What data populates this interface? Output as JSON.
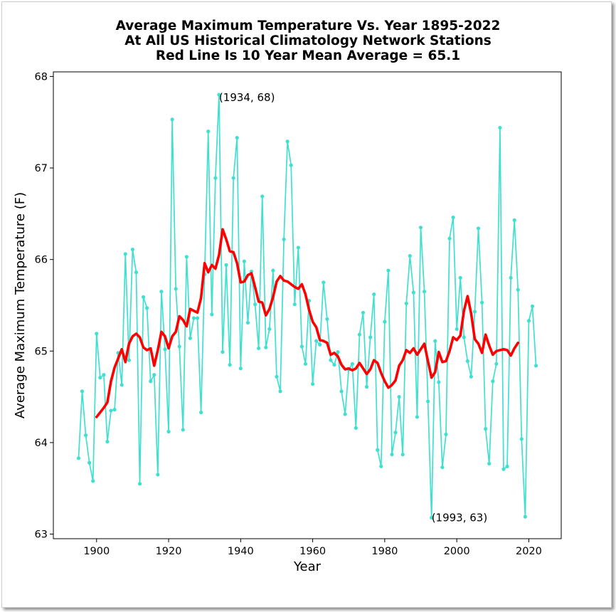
{
  "chart_data": {
    "type": "line",
    "title_lines": [
      "Average Maximum Temperature Vs. Year 1895-2022",
      "At All US Historical Climatology Network Stations",
      "Red Line Is 10 Year Mean  Average = 65.1"
    ],
    "xlabel": "Year",
    "ylabel": "Average Maximum Temperature (F)",
    "xlim": [
      1888,
      2029
    ],
    "ylim": [
      62.95,
      68.05
    ],
    "xticks": [
      1900,
      1920,
      1940,
      1960,
      1980,
      2000,
      2020
    ],
    "yticks": [
      63,
      64,
      65,
      66,
      67,
      68
    ],
    "grid": false,
    "series": [
      {
        "color": "#40E0D0",
        "marker": "circle",
        "x_start": 1895,
        "values": [
          63.83,
          64.56,
          64.08,
          63.78,
          63.58,
          65.19,
          64.71,
          64.74,
          64.01,
          64.35,
          64.36,
          64.98,
          64.63,
          66.06,
          64.9,
          66.11,
          65.86,
          63.55,
          65.59,
          65.47,
          64.67,
          64.74,
          63.65,
          65.65,
          65.02,
          64.12,
          67.53,
          65.68,
          65.05,
          64.14,
          66.03,
          65.14,
          65.36,
          65.36,
          64.33,
          65.84,
          67.4,
          65.4,
          66.89,
          67.8,
          64.99,
          65.94,
          64.85,
          66.89,
          67.33,
          64.81,
          65.98,
          65.31,
          65.87,
          65.51,
          65.03,
          66.69,
          65.04,
          65.24,
          65.88,
          64.72,
          64.56,
          66.22,
          67.29,
          67.03,
          65.51,
          66.13,
          65.05,
          64.86,
          65.55,
          64.64,
          65.11,
          65.07,
          65.75,
          65.35,
          64.9,
          64.85,
          64.99,
          64.56,
          64.31,
          64.8,
          64.86,
          64.16,
          65.18,
          65.42,
          64.61,
          65.15,
          65.62,
          63.92,
          63.74,
          65.32,
          65.88,
          63.87,
          64.11,
          64.5,
          63.87,
          65.52,
          66.04,
          65.64,
          64.28,
          66.35,
          65.65,
          64.45,
          63.18,
          65.11,
          64.66,
          63.73,
          64.09,
          66.23,
          66.46,
          65.24,
          65.8,
          65.15,
          64.89,
          64.72,
          65.43,
          66.34,
          65.53,
          64.15,
          63.77,
          64.67,
          64.86,
          67.44,
          63.71,
          63.74,
          65.8,
          66.43,
          65.67,
          64.04,
          63.19,
          65.33,
          65.49,
          64.84
        ]
      },
      {
        "color": "#FF0000",
        "marker": "none",
        "x_start": 1900,
        "values": [
          64.28,
          64.33,
          64.38,
          64.44,
          64.67,
          64.82,
          64.92,
          65.02,
          64.88,
          65.08,
          65.16,
          65.19,
          65.15,
          65.04,
          65.01,
          65.03,
          64.84,
          65.01,
          65.21,
          65.16,
          65.03,
          65.16,
          65.21,
          65.38,
          65.34,
          65.27,
          65.46,
          65.44,
          65.42,
          65.58,
          65.96,
          65.86,
          65.94,
          65.9,
          66.05,
          66.33,
          66.22,
          66.09,
          66.08,
          65.96,
          65.75,
          65.76,
          65.83,
          65.85,
          65.7,
          65.54,
          65.53,
          65.39,
          65.46,
          65.59,
          65.76,
          65.82,
          65.77,
          65.76,
          65.73,
          65.7,
          65.68,
          65.73,
          65.62,
          65.45,
          65.32,
          65.26,
          65.12,
          65.11,
          65.09,
          64.96,
          64.98,
          64.94,
          64.85,
          64.8,
          64.81,
          64.79,
          64.81,
          64.87,
          64.81,
          64.75,
          64.8,
          64.9,
          64.87,
          64.76,
          64.67,
          64.6,
          64.63,
          64.68,
          64.84,
          64.9,
          65.01,
          64.98,
          65.03,
          64.96,
          65.02,
          65.08,
          64.89,
          64.71,
          64.77,
          64.99,
          64.88,
          64.89,
          65.0,
          65.15,
          65.12,
          65.17,
          65.44,
          65.6,
          65.41,
          65.13,
          65.08,
          64.98,
          65.18,
          65.06,
          64.96,
          65.0,
          65.01,
          65.02,
          65.01,
          64.95,
          65.03,
          65.09
        ]
      }
    ],
    "annotations": [
      {
        "text": "(1934, 68)",
        "x": 1934,
        "y": 67.77
      },
      {
        "text": "(1993, 63)",
        "x": 1993,
        "y": 63.18
      }
    ]
  }
}
